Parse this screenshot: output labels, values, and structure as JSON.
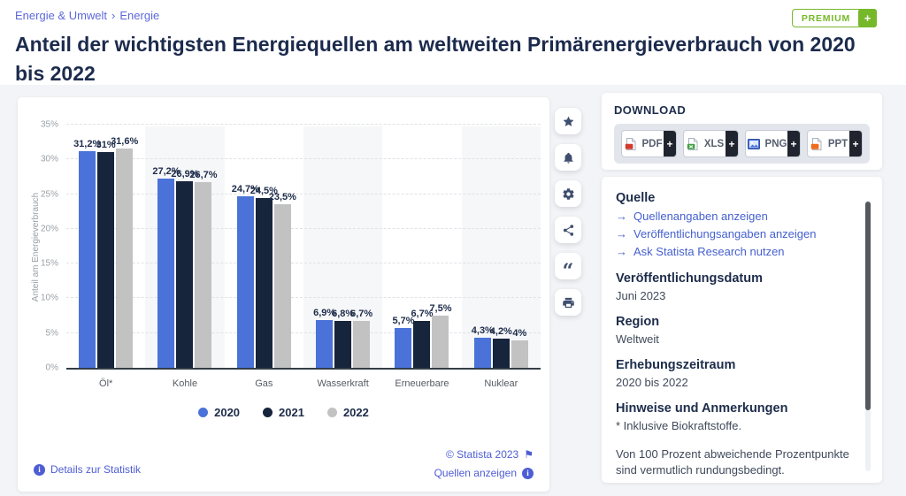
{
  "breadcrumb": {
    "items": [
      "Energie & Umwelt",
      "Energie"
    ],
    "separator": "›"
  },
  "premium_badge": {
    "label": "PREMIUM",
    "plus": "+"
  },
  "page_title": "Anteil der wichtigsten Energiequellen am weltweiten Primärenergieverbrauch von 2020 bis 2022",
  "chart_data": {
    "type": "bar",
    "categories": [
      "Öl*",
      "Kohle",
      "Gas",
      "Wasserkraft",
      "Erneuerbare",
      "Nuklear"
    ],
    "series": [
      {
        "name": "2020",
        "color": "#4a72d8",
        "values": [
          31.2,
          27.2,
          24.7,
          6.9,
          5.7,
          4.3
        ],
        "labels": [
          "31,2%",
          "27,2%",
          "24,7%",
          "6,9%",
          "5,7%",
          "4,3%"
        ]
      },
      {
        "name": "2021",
        "color": "#16243c",
        "values": [
          31.0,
          26.9,
          24.5,
          6.8,
          6.7,
          4.2
        ],
        "labels": [
          "31%",
          "26,9%",
          "24,5%",
          "6,8%",
          "6,7%",
          "4,2%"
        ]
      },
      {
        "name": "2022",
        "color": "#c2c2c2",
        "values": [
          31.6,
          26.7,
          23.5,
          6.7,
          7.5,
          4.0
        ],
        "labels": [
          "31,6%",
          "26,7%",
          "23,5%",
          "6,7%",
          "7,5%",
          "4%"
        ]
      }
    ],
    "ylabel": "Anteil am Energieverbrauch",
    "ylim": [
      0,
      35
    ],
    "ytick_step": 5,
    "ytick_suffix": "%",
    "grid": true,
    "legend_position": "bottom"
  },
  "chart_footer": {
    "details_link": "Details zur Statistik",
    "copyright": "© Statista 2023",
    "sources_link": "Quellen anzeigen"
  },
  "action_buttons": [
    {
      "name": "favorite",
      "icon": "star-icon"
    },
    {
      "name": "alert",
      "icon": "bell-icon"
    },
    {
      "name": "settings",
      "icon": "gear-icon"
    },
    {
      "name": "share",
      "icon": "share-icon"
    },
    {
      "name": "cite",
      "icon": "quote-icon"
    },
    {
      "name": "print",
      "icon": "printer-icon"
    }
  ],
  "download": {
    "title": "DOWNLOAD",
    "plus": "+",
    "buttons": [
      {
        "label": "PDF",
        "icon": "pdf-file-icon",
        "color": "#d23b2e"
      },
      {
        "label": "XLS",
        "icon": "xls-file-icon",
        "color": "#43a047"
      },
      {
        "label": "PNG",
        "icon": "png-image-icon",
        "color": "#4a72d8"
      },
      {
        "label": "PPT",
        "icon": "ppt-file-icon",
        "color": "#ef6c1a"
      }
    ]
  },
  "details_panel": {
    "sections": [
      {
        "heading": "Quelle",
        "links": [
          "Quellenangaben anzeigen",
          "Veröffentlichungsangaben anzeigen",
          "Ask Statista Research nutzen"
        ]
      },
      {
        "heading": "Veröffentlichungsdatum",
        "paragraphs": [
          "Juni 2023"
        ]
      },
      {
        "heading": "Region",
        "paragraphs": [
          "Weltweit"
        ]
      },
      {
        "heading": "Erhebungszeitraum",
        "paragraphs": [
          "2020 bis 2022"
        ]
      },
      {
        "heading": "Hinweise und Anmerkungen",
        "paragraphs": [
          "* Inklusive Biokraftstoffe.",
          "Von 100 Prozent abweichende Prozentpunkte sind vermutlich rundungsbedingt."
        ]
      }
    ]
  }
}
